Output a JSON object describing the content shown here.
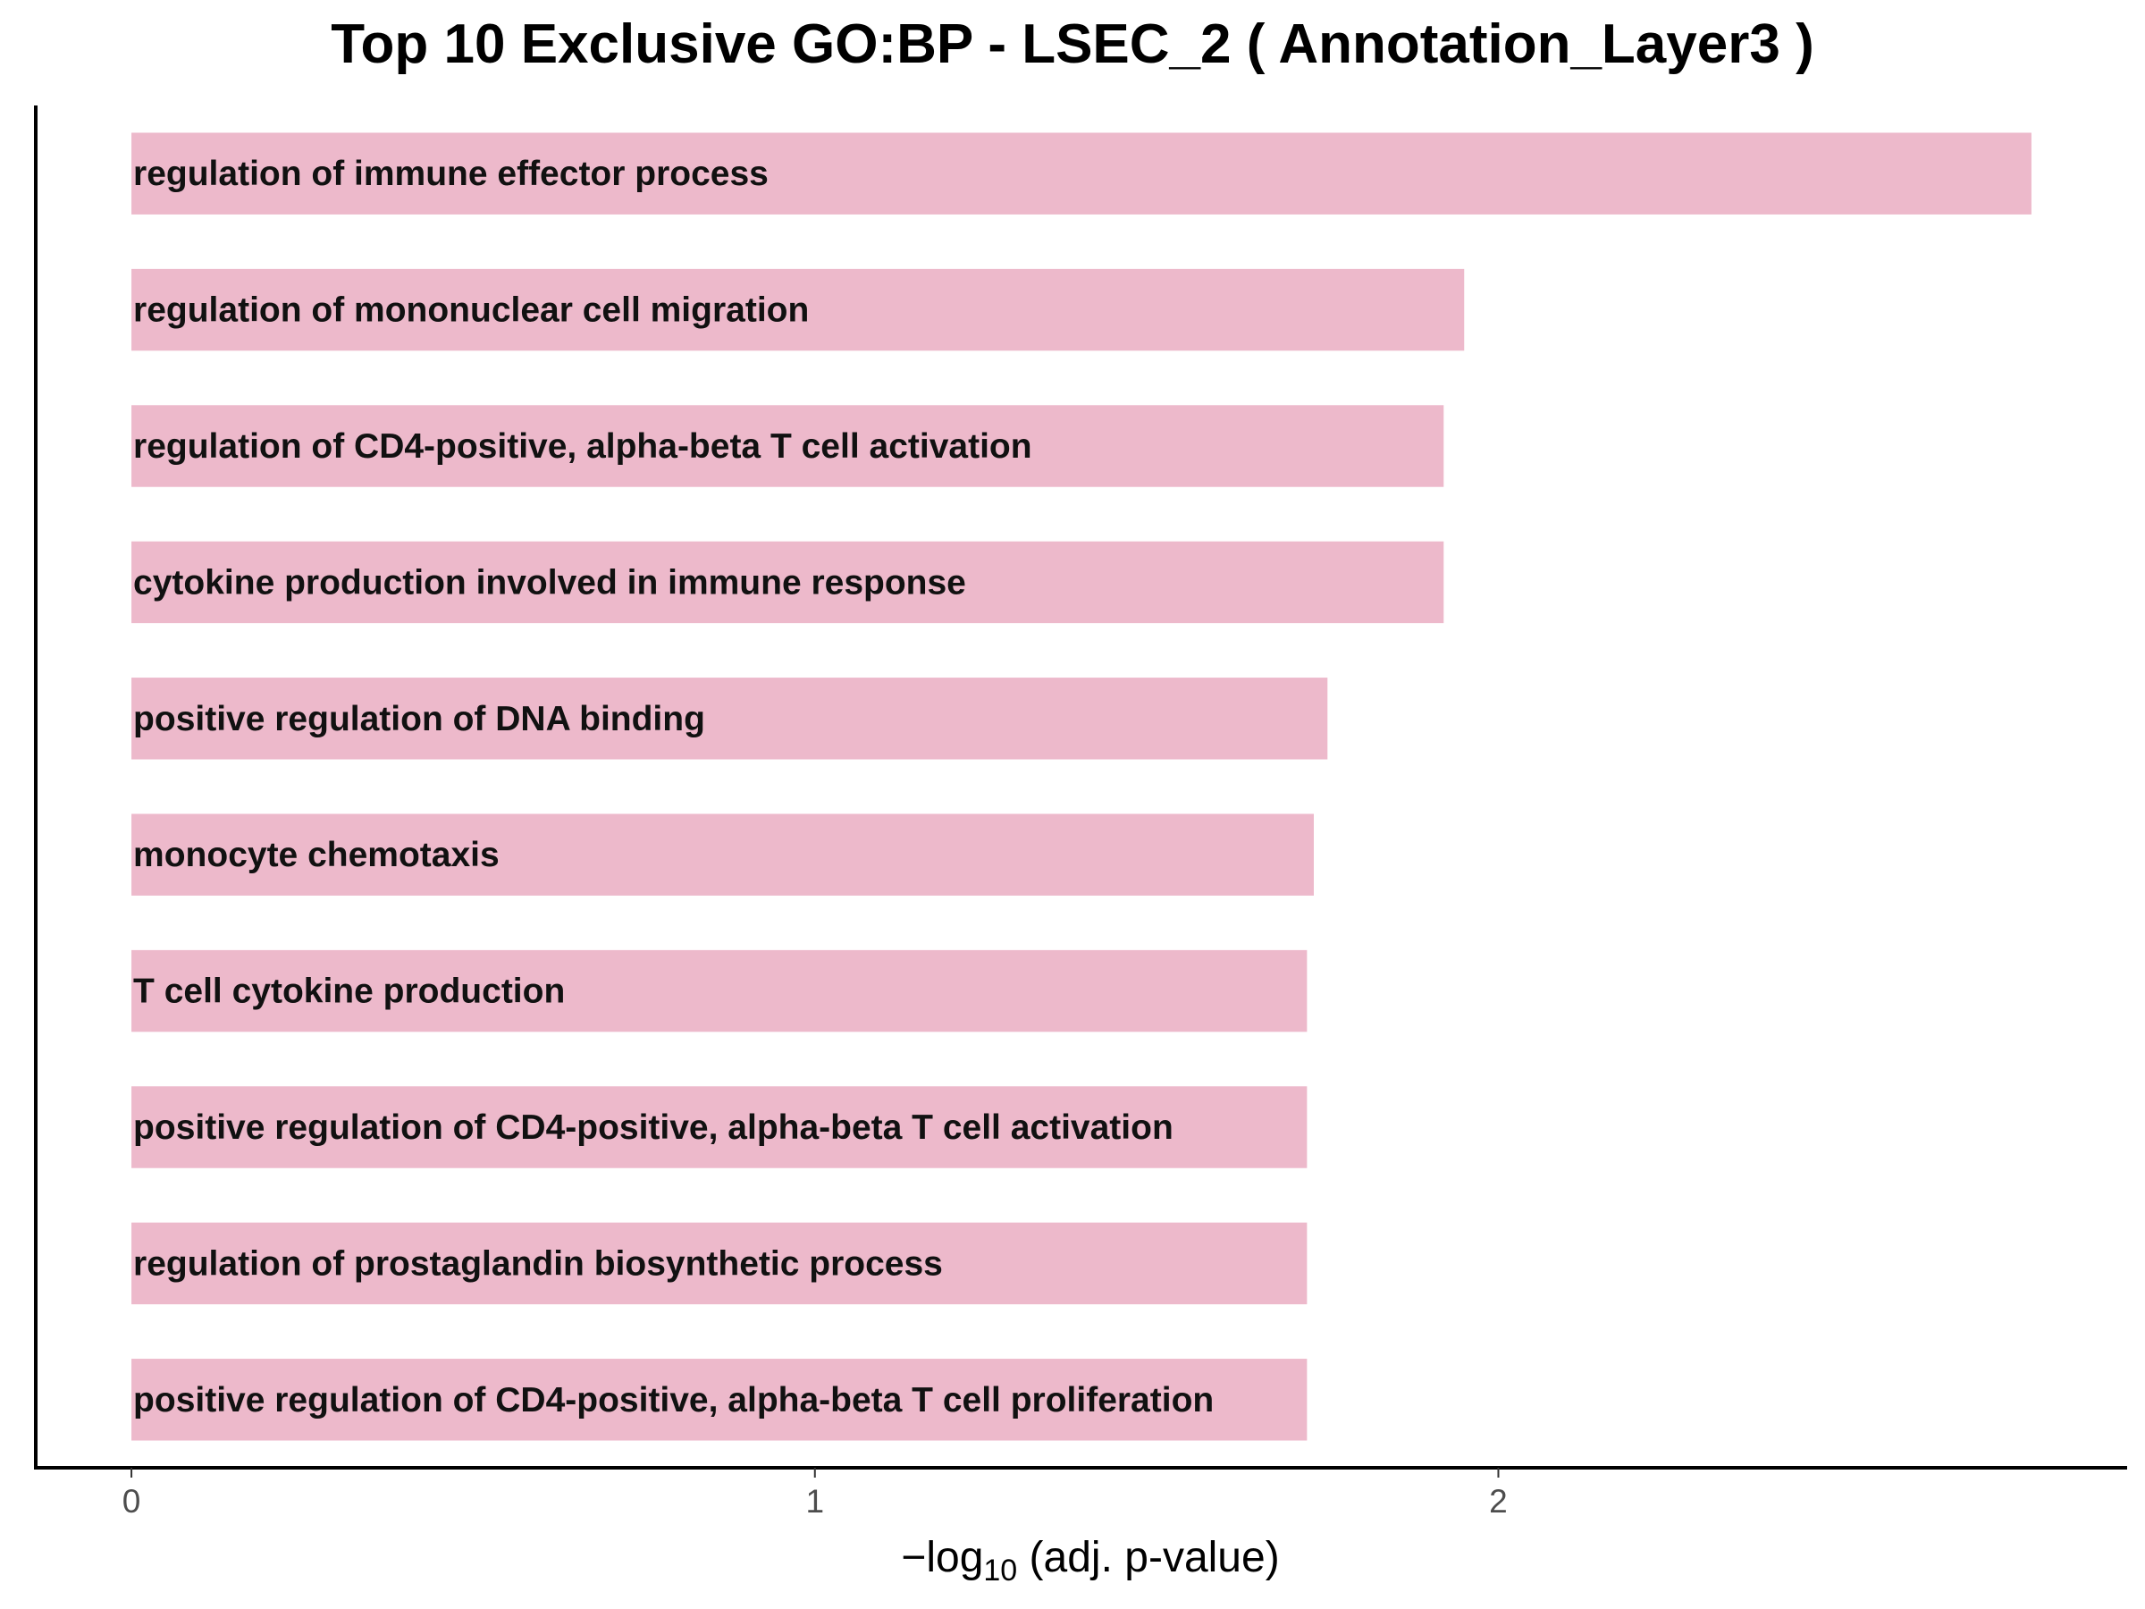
{
  "chart_data": {
    "type": "bar",
    "orientation": "horizontal",
    "title": "Top 10 Exclusive GO:BP - LSEC_2 ( Annotation_Layer3 )",
    "xlabel": "−log10 (adj. p-value)",
    "xlabel_parts": {
      "prefix": "−log",
      "subscript": "10",
      "suffix": " (adj. p-value)"
    },
    "ylabel": "",
    "categories": [
      "regulation of immune effector process",
      "regulation of mononuclear cell migration",
      "regulation of CD4-positive, alpha-beta T cell activation",
      "cytokine production involved in immune response",
      "positive regulation of DNA binding",
      "monocyte chemotaxis",
      "T cell cytokine production",
      "positive regulation of CD4-positive, alpha-beta T cell activation",
      "regulation of prostaglandin biosynthetic process",
      "positive regulation of CD4-positive, alpha-beta T cell proliferation"
    ],
    "values": [
      2.78,
      1.95,
      1.92,
      1.92,
      1.75,
      1.73,
      1.72,
      1.72,
      1.72,
      1.72
    ],
    "xlim": [
      -0.14,
      2.92
    ],
    "xticks": [
      "0",
      "1",
      "2"
    ],
    "bar_color": "#EDB9CB",
    "grid": false,
    "legend": "none"
  }
}
